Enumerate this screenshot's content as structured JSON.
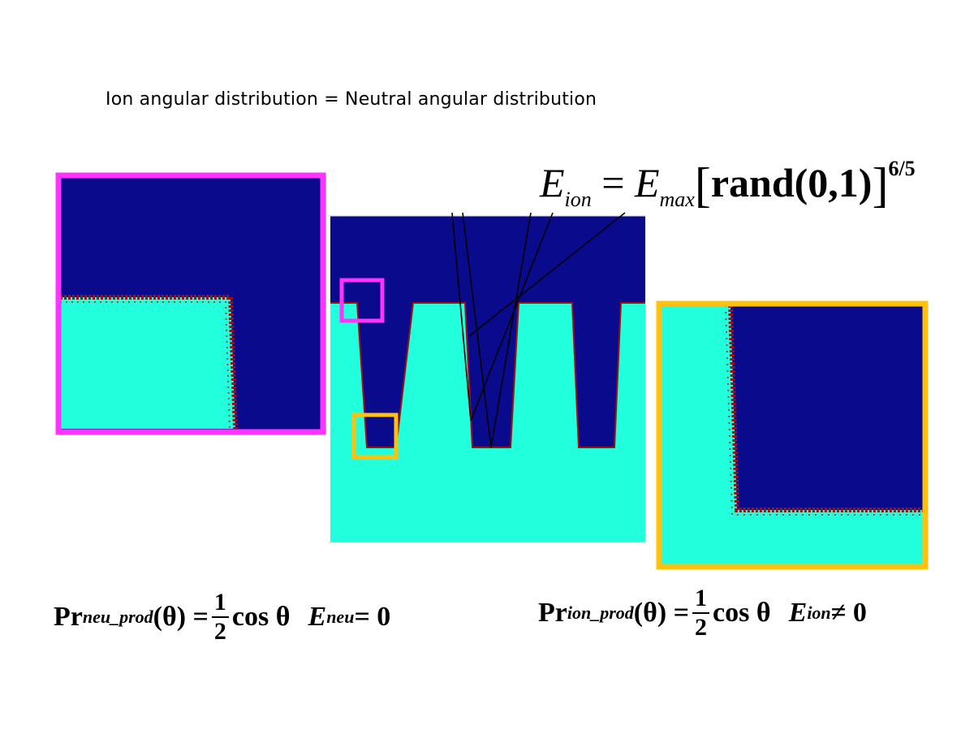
{
  "title": "Ion angular distribution = Neutral angular distribution",
  "eq_top": {
    "E": "E",
    "ion_sub": "ion",
    "equals": "=",
    "Emax": "E",
    "max_sub": "max",
    "lbracket": "[",
    "rand": "rand(0,1)",
    "rbracket": "]",
    "exponent": "6/5"
  },
  "eq_left": {
    "pr": "Pr",
    "sub": "neu_prod",
    "theta": "(θ) =",
    "num": "1",
    "den": "2",
    "cos": "cos θ",
    "E": "E",
    "E_sub": "neu",
    "rel": "= 0"
  },
  "eq_right": {
    "pr": "Pr",
    "sub": "ion_prod",
    "theta": "(θ) =",
    "num": "1",
    "den": "2",
    "cos": "cos θ",
    "E": "E",
    "E_sub": "ion",
    "rel": "≠ 0"
  },
  "colors": {
    "cavity": "#0a0a8c",
    "material": "#22ffdd",
    "redeposit": "#a01010",
    "magenta_frame": "#ff33ff",
    "orange_frame": "#ffc10d",
    "trajectory": "#000000"
  }
}
